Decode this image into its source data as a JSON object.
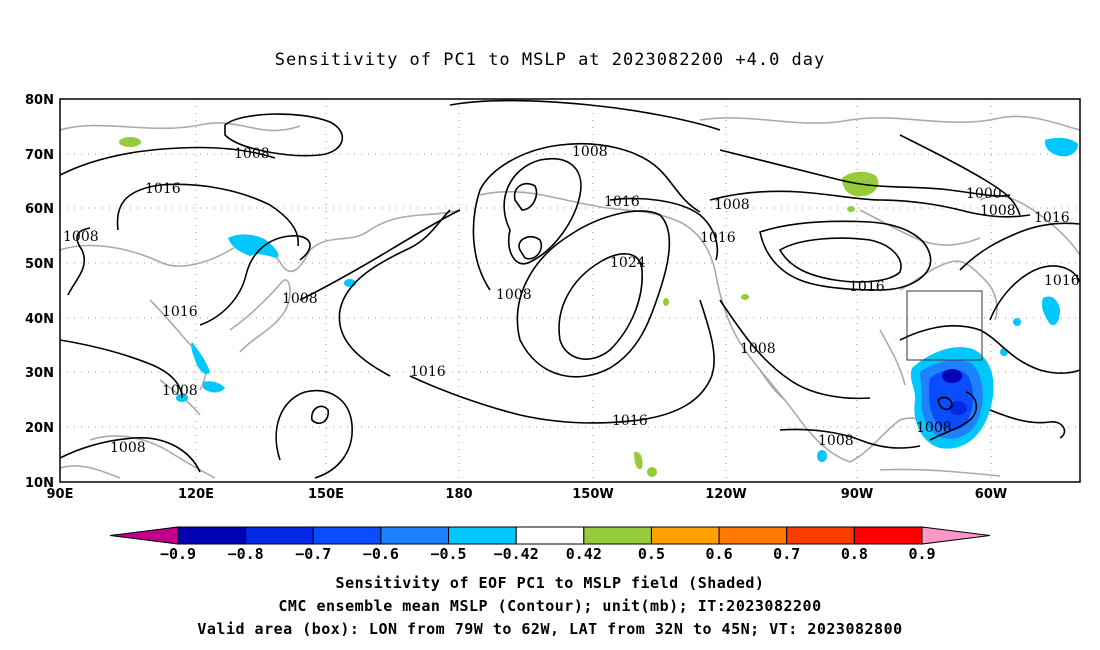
{
  "title": "Sensitivity of PC1 to MSLP at 2023082200 +4.0 day",
  "lat_labels": [
    "80N",
    "70N",
    "60N",
    "50N",
    "40N",
    "30N",
    "20N",
    "10N"
  ],
  "lon_labels": [
    "90E",
    "120E",
    "150E",
    "180",
    "150W",
    "120W",
    "90W",
    "60W"
  ],
  "contour_labels": [
    {
      "text": "1008",
      "id": "c1"
    },
    {
      "text": "1016",
      "id": "c2"
    },
    {
      "text": "1008",
      "id": "c3"
    },
    {
      "text": "1016",
      "id": "c4"
    },
    {
      "text": "1008",
      "id": "c5"
    },
    {
      "text": "1008",
      "id": "c6"
    },
    {
      "text": "1008",
      "id": "c7"
    },
    {
      "text": "1008",
      "id": "c8"
    },
    {
      "text": "1016",
      "id": "c9"
    },
    {
      "text": "1024",
      "id": "c10"
    },
    {
      "text": "1008",
      "id": "c11"
    },
    {
      "text": "1016",
      "id": "c12"
    },
    {
      "text": "1016",
      "id": "c13"
    },
    {
      "text": "1016",
      "id": "c14"
    },
    {
      "text": "1008",
      "id": "c15"
    },
    {
      "text": "1008",
      "id": "c16"
    },
    {
      "text": "1000",
      "id": "c17"
    },
    {
      "text": "1008",
      "id": "c18"
    },
    {
      "text": "1016",
      "id": "c19"
    },
    {
      "text": "1016",
      "id": "c20"
    },
    {
      "text": "1008",
      "id": "c21"
    },
    {
      "text": "1008",
      "id": "c22"
    }
  ],
  "colorbar": {
    "labels": [
      "-0.9",
      "-0.8",
      "-0.7",
      "-0.6",
      "-0.5",
      "-0.42",
      "0.42",
      "0.5",
      "0.6",
      "0.7",
      "0.8",
      "0.9"
    ],
    "colors": [
      "#c0008c",
      "#0000b4",
      "#0028e6",
      "#0a4cff",
      "#1e82ff",
      "#00c8ff",
      "#ffffff",
      "#96cc3c",
      "#ffa000",
      "#ff7800",
      "#ff3c00",
      "#ff0000",
      "#ff96c8"
    ]
  },
  "captions": {
    "line1": "Sensitivity of EOF PC1 to MSLP field (Shaded)",
    "line2": "CMC ensemble mean MSLP (Contour); unit(mb); IT:2023082200",
    "line3": "Valid area (box): LON from 79W to 62W, LAT from 32N to 45N; VT: 2023082800"
  }
}
